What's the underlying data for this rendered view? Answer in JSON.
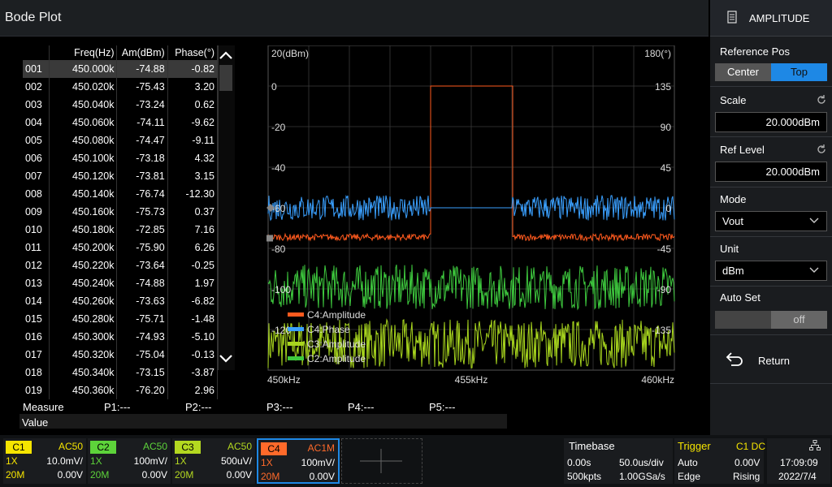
{
  "title": "Bode Plot",
  "panel": {
    "header": "AMPLITUDE",
    "reference_pos_label": "Reference Pos",
    "reference_options": [
      "Center",
      "Top"
    ],
    "reference_selected": "Top",
    "scale_label": "Scale",
    "scale_value": "20.000dBm",
    "ref_level_label": "Ref Level",
    "ref_level_value": "20.000dBm",
    "mode_label": "Mode",
    "mode_value": "Vout",
    "unit_label": "Unit",
    "unit_value": "dBm",
    "auto_set_label": "Auto Set",
    "auto_set_value": "off",
    "return_label": "Return"
  },
  "table": {
    "headers": [
      "",
      "Freq(Hz)",
      "Am(dBm)",
      "Phase(°)"
    ],
    "rows": [
      [
        "001",
        "450.000k",
        "-74.88",
        "-0.82"
      ],
      [
        "002",
        "450.020k",
        "-75.43",
        "3.20"
      ],
      [
        "003",
        "450.040k",
        "-73.24",
        "0.62"
      ],
      [
        "004",
        "450.060k",
        "-74.11",
        "-9.62"
      ],
      [
        "005",
        "450.080k",
        "-74.47",
        "-9.11"
      ],
      [
        "006",
        "450.100k",
        "-73.18",
        "4.32"
      ],
      [
        "007",
        "450.120k",
        "-73.81",
        "3.15"
      ],
      [
        "008",
        "450.140k",
        "-76.74",
        "-12.30"
      ],
      [
        "009",
        "450.160k",
        "-75.73",
        "0.37"
      ],
      [
        "010",
        "450.180k",
        "-72.85",
        "7.16"
      ],
      [
        "011",
        "450.200k",
        "-75.90",
        "6.26"
      ],
      [
        "012",
        "450.220k",
        "-73.64",
        "-0.25"
      ],
      [
        "013",
        "450.240k",
        "-74.88",
        "1.97"
      ],
      [
        "014",
        "450.260k",
        "-73.63",
        "-6.82"
      ],
      [
        "015",
        "450.280k",
        "-75.71",
        "-1.48"
      ],
      [
        "016",
        "450.300k",
        "-74.93",
        "-5.10"
      ],
      [
        "017",
        "450.320k",
        "-75.04",
        "-0.13"
      ],
      [
        "018",
        "450.340k",
        "-73.15",
        "-3.87"
      ],
      [
        "019",
        "450.360k",
        "-76.20",
        "2.96"
      ]
    ]
  },
  "chart_data": {
    "type": "line",
    "left_axis_title": "20(dBm)",
    "right_axis_title": "180(°)",
    "y_left_ticks": [
      "0",
      "-20",
      "-40",
      "-60",
      "-80",
      "-100",
      "-120"
    ],
    "y_right_ticks": [
      "135",
      "90",
      "45",
      "0",
      "-45",
      "-90",
      "-135"
    ],
    "x_ticks": [
      "450kHz",
      "455kHz",
      "460kHz"
    ],
    "ylim_left": [
      -140,
      20
    ],
    "ylim_right": [
      -180,
      180
    ],
    "xlim_khz": [
      450,
      460
    ],
    "series": [
      {
        "name": "C4:Amplitude",
        "color": "#ff5a1e",
        "description": "noise near -75 dBm, step up to 0 dBm between 454 and 456 kHz"
      },
      {
        "name": "C4:Phase",
        "color": "#3aa0ff",
        "description": "noisy around 0°, flat 0° between 454 and 456 kHz"
      },
      {
        "name": "C3:Amplitude",
        "color": "#a8d61e",
        "description": "noisy around -125 dBm"
      },
      {
        "name": "C2:Amplitude",
        "color": "#3ec93e",
        "description": "noisy around -100 dBm"
      }
    ],
    "legend": [
      "C4:Amplitude",
      "C4:Phase",
      "C3:Amplitude",
      "C2:Amplitude"
    ]
  },
  "measure": {
    "label": "Measure",
    "p1": "P1:---",
    "p2": "P2:---",
    "p3": "P3:---",
    "p4": "P4:---",
    "p5": "P5:---",
    "value_label": "Value"
  },
  "channels": [
    {
      "tag": "C1",
      "coupling": "AC50",
      "probe": "1X",
      "scale": "10.0mV/",
      "bw": "20M",
      "offset": "0.00V",
      "color": "#f5e400"
    },
    {
      "tag": "C2",
      "coupling": "AC50",
      "probe": "1X",
      "scale": "100mV/",
      "bw": "20M",
      "offset": "0.00V",
      "color": "#5dd33a"
    },
    {
      "tag": "C3",
      "coupling": "AC50",
      "probe": "1X",
      "scale": "500uV/",
      "bw": "20M",
      "offset": "0.00V",
      "color": "#b4d820"
    },
    {
      "tag": "C4",
      "coupling": "AC1M",
      "probe": "1X",
      "scale": "100mV/",
      "bw": "20M",
      "offset": "0.00V",
      "color": "#ff6a2a"
    }
  ],
  "timebase": {
    "label": "Timebase",
    "delay": "0.00s",
    "scale": "50.0us/div",
    "memory": "500kpts",
    "rate": "1.00GSa/s"
  },
  "trigger": {
    "label": "Trigger",
    "source": "C1 DC",
    "mode": "Auto",
    "level": "0.00V",
    "type": "Edge",
    "slope": "Rising"
  },
  "clock": {
    "time": "17:09:09",
    "date": "2022/7/4"
  }
}
